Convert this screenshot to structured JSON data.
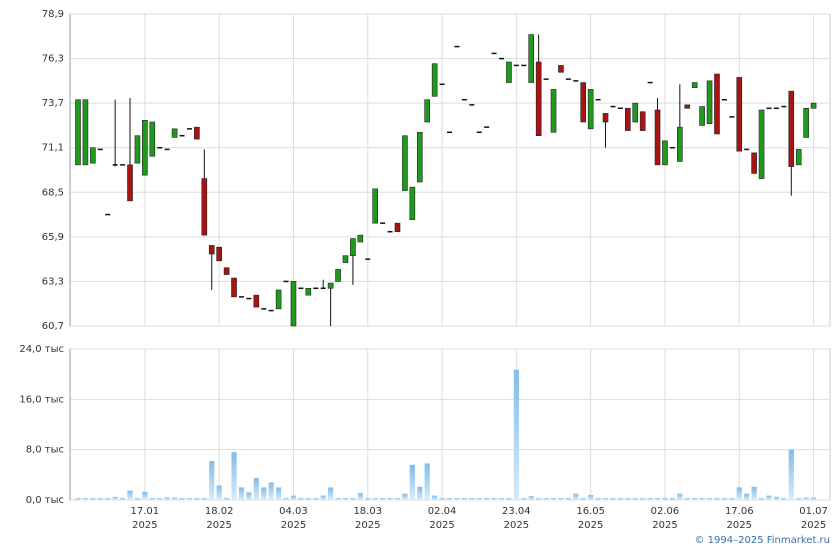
{
  "chart_data": [
    {
      "type": "candlestick",
      "ylim": [
        60.7,
        78.9
      ],
      "yticks": [
        {
          "value": 60.7,
          "label": "60,7"
        },
        {
          "value": 63.3,
          "label": "63,3"
        },
        {
          "value": 65.9,
          "label": "65,9"
        },
        {
          "value": 68.5,
          "label": "68,5"
        },
        {
          "value": 71.1,
          "label": "71,1"
        },
        {
          "value": 73.7,
          "label": "73,7"
        },
        {
          "value": 76.3,
          "label": "76,3"
        },
        {
          "value": 78.9,
          "label": "78,9"
        }
      ],
      "grid": true,
      "up_color": "#1f9a1f",
      "down_color": "#a81414",
      "open": [
        70.1,
        70.1,
        70.2,
        71.0,
        67.2,
        70.1,
        70.1,
        70.1,
        70.2,
        69.5,
        70.6,
        71.1,
        71.0,
        71.7,
        71.8,
        72.2,
        72.3,
        69.3,
        65.4,
        65.3,
        64.1,
        63.5,
        62.4,
        62.3,
        62.5,
        61.7,
        61.6,
        61.7,
        63.3,
        60.7,
        62.9,
        62.5,
        62.9,
        62.9,
        62.9,
        63.3,
        64.4,
        64.8,
        65.6,
        64.6,
        66.7,
        66.7,
        66.2,
        66.7,
        68.6,
        66.9,
        69.1,
        72.6,
        74.1,
        74.8,
        72.0,
        77.0,
        73.9,
        73.6,
        72.0,
        72.3,
        76.6,
        76.3,
        74.9,
        75.9,
        75.9,
        74.9,
        76.1,
        75.1,
        72.0,
        75.9,
        75.1,
        75.0,
        74.9,
        72.2,
        73.9,
        73.1,
        73.5,
        73.4,
        73.4,
        72.6,
        73.2,
        74.9,
        73.3,
        70.1,
        71.1,
        70.3,
        73.6,
        74.6,
        72.4,
        72.5,
        75.4,
        73.9,
        72.9,
        75.2,
        71.0,
        70.8,
        69.3,
        73.4,
        73.4,
        73.5,
        74.4,
        70.1,
        71.7,
        73.4
      ],
      "high": [
        73.9,
        73.9,
        71.1,
        71.0,
        67.2,
        73.9,
        70.1,
        74.0,
        71.8,
        72.7,
        72.6,
        71.1,
        71.0,
        72.2,
        71.8,
        72.2,
        72.3,
        71.0,
        65.4,
        65.3,
        64.1,
        63.5,
        62.4,
        62.3,
        62.5,
        61.7,
        61.6,
        62.8,
        63.3,
        63.3,
        62.9,
        62.9,
        62.9,
        63.4,
        63.2,
        64.0,
        64.8,
        65.8,
        66.0,
        64.6,
        68.7,
        66.7,
        66.2,
        66.7,
        71.8,
        68.8,
        72.0,
        73.9,
        76.0,
        74.8,
        72.0,
        77.0,
        73.9,
        73.6,
        72.0,
        72.3,
        76.6,
        76.3,
        76.1,
        75.9,
        75.9,
        77.7,
        77.7,
        75.1,
        74.5,
        75.9,
        75.1,
        75.0,
        74.9,
        74.5,
        73.9,
        73.1,
        73.5,
        73.4,
        73.4,
        73.7,
        73.2,
        74.9,
        74.0,
        71.5,
        71.1,
        74.8,
        73.6,
        74.9,
        73.5,
        75.0,
        75.4,
        73.9,
        72.9,
        75.2,
        71.0,
        70.8,
        73.3,
        73.4,
        73.4,
        73.5,
        74.4,
        71.0,
        73.4,
        73.7
      ],
      "low": [
        70.1,
        70.1,
        70.2,
        71.0,
        67.2,
        70.0,
        70.1,
        68.0,
        70.2,
        69.5,
        70.6,
        71.1,
        71.0,
        71.7,
        71.8,
        72.2,
        71.6,
        66.0,
        62.8,
        64.5,
        63.7,
        62.4,
        62.4,
        62.3,
        61.8,
        61.7,
        61.6,
        61.7,
        63.3,
        60.7,
        62.9,
        62.5,
        62.9,
        62.9,
        60.7,
        63.3,
        64.4,
        63.1,
        65.6,
        64.6,
        66.7,
        66.7,
        66.2,
        66.2,
        68.6,
        66.9,
        69.1,
        72.6,
        74.1,
        74.8,
        72.0,
        77.0,
        73.9,
        73.6,
        72.0,
        72.3,
        76.6,
        76.3,
        74.9,
        75.9,
        75.9,
        74.9,
        71.8,
        75.1,
        72.0,
        75.5,
        75.1,
        75.0,
        72.6,
        72.2,
        73.9,
        71.1,
        73.5,
        73.4,
        72.1,
        72.6,
        72.1,
        74.9,
        70.1,
        70.1,
        71.1,
        70.3,
        73.4,
        74.6,
        72.4,
        72.5,
        71.9,
        73.9,
        72.9,
        70.9,
        71.0,
        69.6,
        69.3,
        73.4,
        73.4,
        73.5,
        68.3,
        70.1,
        71.7,
        73.4
      ],
      "close": [
        73.9,
        73.9,
        71.1,
        71.0,
        67.2,
        70.1,
        70.1,
        68.0,
        71.8,
        72.7,
        72.6,
        71.1,
        71.0,
        72.2,
        71.8,
        72.2,
        71.6,
        66.0,
        64.9,
        64.5,
        63.7,
        62.4,
        62.4,
        62.3,
        61.8,
        61.7,
        61.6,
        62.8,
        63.3,
        63.3,
        62.9,
        62.9,
        62.9,
        62.9,
        63.2,
        64.0,
        64.8,
        65.8,
        66.0,
        64.6,
        68.7,
        66.7,
        66.2,
        66.2,
        71.8,
        68.8,
        72.0,
        73.9,
        76.0,
        74.8,
        72.0,
        77.0,
        73.9,
        73.6,
        72.0,
        72.3,
        76.6,
        76.3,
        76.1,
        75.9,
        75.9,
        77.7,
        71.8,
        75.1,
        74.5,
        75.5,
        75.1,
        75.0,
        72.6,
        74.5,
        73.9,
        72.6,
        73.5,
        73.4,
        72.1,
        73.7,
        72.1,
        74.9,
        70.1,
        71.5,
        71.1,
        72.3,
        73.4,
        74.9,
        73.5,
        75.0,
        71.9,
        73.9,
        72.9,
        70.9,
        71.0,
        69.6,
        73.3,
        73.4,
        73.4,
        73.5,
        70.0,
        71.0,
        73.4,
        73.7
      ]
    },
    {
      "type": "bar",
      "color": "#8cc4ee",
      "ylim": [
        0,
        24
      ],
      "yticks": [
        {
          "value": 0,
          "label": "0,0 тыс"
        },
        {
          "value": 8,
          "label": "8,0 тыс"
        },
        {
          "value": 16,
          "label": "16,0 тыс"
        },
        {
          "value": 24,
          "label": "24,0 тыс"
        }
      ],
      "grid": true,
      "categories": [
        null,
        null,
        null,
        null,
        null,
        null,
        null,
        null,
        null,
        "17.01\n2025",
        null,
        null,
        null,
        null,
        null,
        null,
        null,
        null,
        null,
        "18.02\n2025",
        null,
        null,
        null,
        null,
        null,
        null,
        null,
        null,
        null,
        "04.03\n2025",
        null,
        null,
        null,
        null,
        null,
        null,
        null,
        null,
        null,
        "18.03\n2025",
        null,
        null,
        null,
        null,
        null,
        null,
        null,
        null,
        null,
        "02.04\n2025",
        null,
        null,
        null,
        null,
        null,
        null,
        null,
        null,
        null,
        "23.04\n2025",
        null,
        null,
        null,
        null,
        null,
        null,
        null,
        null,
        null,
        "16.05\n2025",
        null,
        null,
        null,
        null,
        null,
        null,
        null,
        null,
        null,
        "02.06\n2025",
        null,
        null,
        null,
        null,
        null,
        null,
        null,
        null,
        null,
        "17.06\n2025",
        null,
        null,
        null,
        null,
        null,
        null,
        null,
        null,
        null,
        "01.07\n2025"
      ],
      "values": [
        0.3,
        0.3,
        0.3,
        0.3,
        0.3,
        0.5,
        0.3,
        1.5,
        0.3,
        1.3,
        0.3,
        0.3,
        0.4,
        0.4,
        0.3,
        0.3,
        0.3,
        0.3,
        6.2,
        2.3,
        0.3,
        7.6,
        2.0,
        1.2,
        3.5,
        2.0,
        2.8,
        2.0,
        0.3,
        0.7,
        0.3,
        0.3,
        0.3,
        0.7,
        2.0,
        0.3,
        0.3,
        0.3,
        1.1,
        0.3,
        0.3,
        0.3,
        0.3,
        0.3,
        1.0,
        5.6,
        2.1,
        5.8,
        0.7,
        0.3,
        0.3,
        0.3,
        0.3,
        0.3,
        0.3,
        0.3,
        0.3,
        0.3,
        0.3,
        20.7,
        0.3,
        0.6,
        0.3,
        0.3,
        0.3,
        0.3,
        0.3,
        1.0,
        0.3,
        0.8,
        0.3,
        0.3,
        0.3,
        0.3,
        0.3,
        0.3,
        0.3,
        0.3,
        0.3,
        0.3,
        0.3,
        1.0,
        0.3,
        0.3,
        0.3,
        0.3,
        0.3,
        0.3,
        0.3,
        2.0,
        1.0,
        2.1,
        0.3,
        0.7,
        0.5,
        0.3,
        8.0,
        0.3,
        0.4,
        0.4
      ]
    }
  ],
  "footer": "© 1994–2025 Finmarket.ru"
}
